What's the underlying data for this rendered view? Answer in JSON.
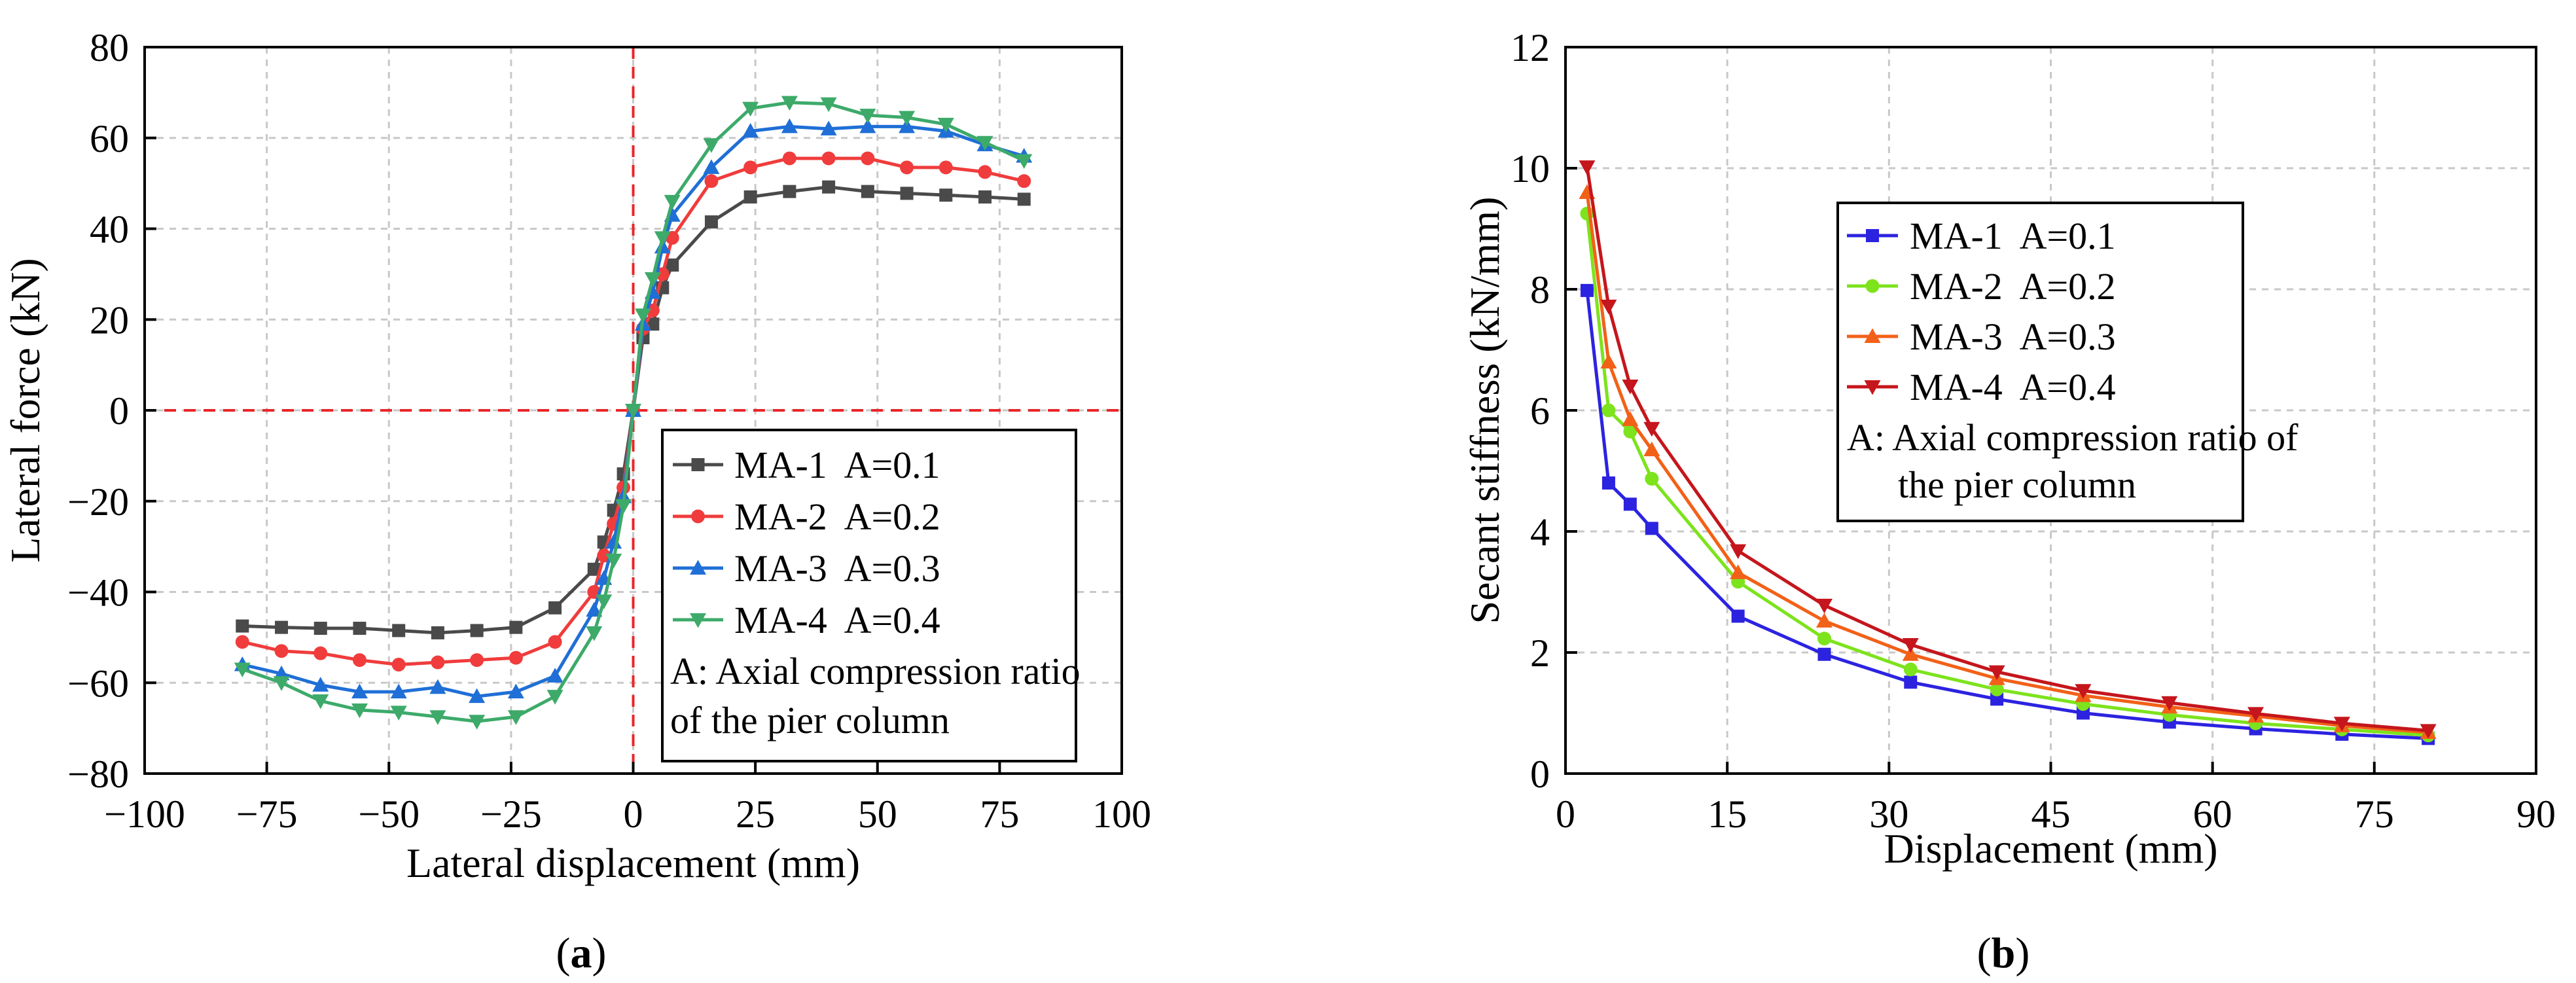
{
  "chart_data": [
    {
      "type": "line",
      "panel_label": "a",
      "title": "",
      "xlabel": "Lateral displacement (mm)",
      "ylabel": "Lateral force (kN)",
      "xlim": [
        -100,
        100
      ],
      "ylim": [
        -80,
        80
      ],
      "xticks": [
        -100,
        -75,
        -50,
        -25,
        0,
        25,
        50,
        75,
        100
      ],
      "yticks": [
        -80,
        -60,
        -40,
        -20,
        0,
        20,
        40,
        60,
        80
      ],
      "grid": true,
      "reference_lines": {
        "x": 0,
        "y": 0,
        "color": "#e8262a"
      },
      "legend_position": "bottom-right",
      "legend_note": "A: Axial compression ratio of the pier column",
      "series": [
        {
          "name": "MA-1  A=0.1",
          "color": "#4a4a4a",
          "marker": "square",
          "x": [
            -80,
            -72,
            -64,
            -56,
            -48,
            -40,
            -32,
            -24,
            -16,
            -8,
            -6,
            -4,
            -2,
            0,
            2,
            4,
            6,
            8,
            16,
            24,
            32,
            40,
            48,
            56,
            64,
            72,
            80
          ],
          "y": [
            -47.5,
            -47.8,
            -48,
            -48,
            -48.5,
            -49,
            -48.5,
            -47.8,
            -43.5,
            -35,
            -29,
            -22,
            -14,
            0,
            16,
            19,
            27,
            32,
            41.5,
            47,
            48.2,
            49.2,
            48.2,
            47.8,
            47.4,
            47,
            46.5
          ]
        },
        {
          "name": "MA-2  A=0.2",
          "color": "#f03c3c",
          "marker": "circle",
          "x": [
            -80,
            -72,
            -64,
            -56,
            -48,
            -40,
            -32,
            -24,
            -16,
            -8,
            -6,
            -4,
            -2,
            0,
            2,
            4,
            6,
            8,
            16,
            24,
            32,
            40,
            48,
            56,
            64,
            72,
            80
          ],
          "y": [
            -51,
            -53,
            -53.5,
            -55,
            -56,
            -55.5,
            -55,
            -54.5,
            -51,
            -40,
            -32,
            -25,
            -17,
            0,
            18,
            22,
            30,
            38,
            50.5,
            53.5,
            55.5,
            55.5,
            55.5,
            53.5,
            53.5,
            52.5,
            50.5
          ]
        },
        {
          "name": "MA-3  A=0.3",
          "color": "#1f6fd6",
          "marker": "triangle-up",
          "x": [
            -80,
            -72,
            -64,
            -56,
            -48,
            -40,
            -32,
            -24,
            -16,
            -8,
            -6,
            -4,
            -2,
            0,
            2,
            4,
            6,
            8,
            16,
            24,
            32,
            40,
            48,
            56,
            64,
            72,
            80
          ],
          "y": [
            -56,
            -58,
            -60.5,
            -62,
            -62,
            -61,
            -63,
            -62,
            -58.5,
            -44,
            -37,
            -29,
            -19,
            0,
            19,
            26,
            36,
            43,
            53.5,
            61.5,
            62.5,
            62,
            62.5,
            62.5,
            61.5,
            58.5,
            56
          ]
        },
        {
          "name": "MA-4  A=0.4",
          "color": "#3daa6a",
          "marker": "triangle-down",
          "x": [
            -80,
            -72,
            -64,
            -56,
            -48,
            -40,
            -32,
            -24,
            -16,
            -8,
            -6,
            -4,
            -2,
            0,
            2,
            4,
            6,
            8,
            16,
            24,
            32,
            40,
            48,
            56,
            64,
            72,
            80
          ],
          "y": [
            -57,
            -60,
            -64,
            -66,
            -66.5,
            -67.5,
            -68.5,
            -67.5,
            -63,
            -49,
            -42,
            -33,
            -21,
            0,
            21,
            29,
            38,
            46,
            58.5,
            66.5,
            67.8,
            67.5,
            65,
            64.5,
            63,
            59,
            55
          ]
        }
      ]
    },
    {
      "type": "line",
      "panel_label": "b",
      "title": "",
      "xlabel": "Displacement (mm)",
      "ylabel": "Secant stiffness (kN/mm)",
      "xlim": [
        0,
        90
      ],
      "ylim": [
        0,
        12
      ],
      "xticks": [
        0,
        15,
        30,
        45,
        60,
        75,
        90
      ],
      "yticks": [
        0,
        2,
        4,
        6,
        8,
        10,
        12
      ],
      "grid": true,
      "legend_position": "top-center",
      "legend_note_lines": [
        "A: Axial compression ratio of",
        "the pier column"
      ],
      "series": [
        {
          "name": "MA-1  A=0.1",
          "color": "#2c23e0",
          "marker": "square",
          "x": [
            2,
            4,
            6,
            8,
            16,
            24,
            32,
            40,
            48,
            56,
            64,
            72,
            80
          ],
          "y": [
            7.98,
            4.8,
            4.45,
            4.05,
            2.6,
            1.97,
            1.51,
            1.23,
            1.0,
            0.85,
            0.74,
            0.65,
            0.58
          ]
        },
        {
          "name": "MA-2  A=0.2",
          "color": "#7de31d",
          "marker": "circle",
          "x": [
            2,
            4,
            6,
            8,
            16,
            24,
            32,
            40,
            48,
            56,
            64,
            72,
            80
          ],
          "y": [
            9.25,
            6.0,
            5.65,
            4.87,
            3.17,
            2.23,
            1.72,
            1.39,
            1.15,
            0.97,
            0.83,
            0.73,
            0.63
          ]
        },
        {
          "name": "MA-3  A=0.3",
          "color": "#f26118",
          "marker": "triangle-up",
          "x": [
            2,
            4,
            6,
            8,
            16,
            24,
            32,
            40,
            48,
            56,
            64,
            72,
            80
          ],
          "y": [
            9.6,
            6.8,
            5.85,
            5.35,
            3.32,
            2.52,
            1.97,
            1.57,
            1.29,
            1.1,
            0.95,
            0.79,
            0.68
          ]
        },
        {
          "name": "MA-4  A=0.4",
          "color": "#c4161c",
          "marker": "triangle-down",
          "x": [
            2,
            4,
            6,
            8,
            16,
            24,
            32,
            40,
            48,
            56,
            64,
            72,
            80
          ],
          "y": [
            10.02,
            7.72,
            6.4,
            5.7,
            3.68,
            2.78,
            2.13,
            1.68,
            1.37,
            1.17,
            0.99,
            0.83,
            0.71
          ]
        }
      ]
    }
  ]
}
